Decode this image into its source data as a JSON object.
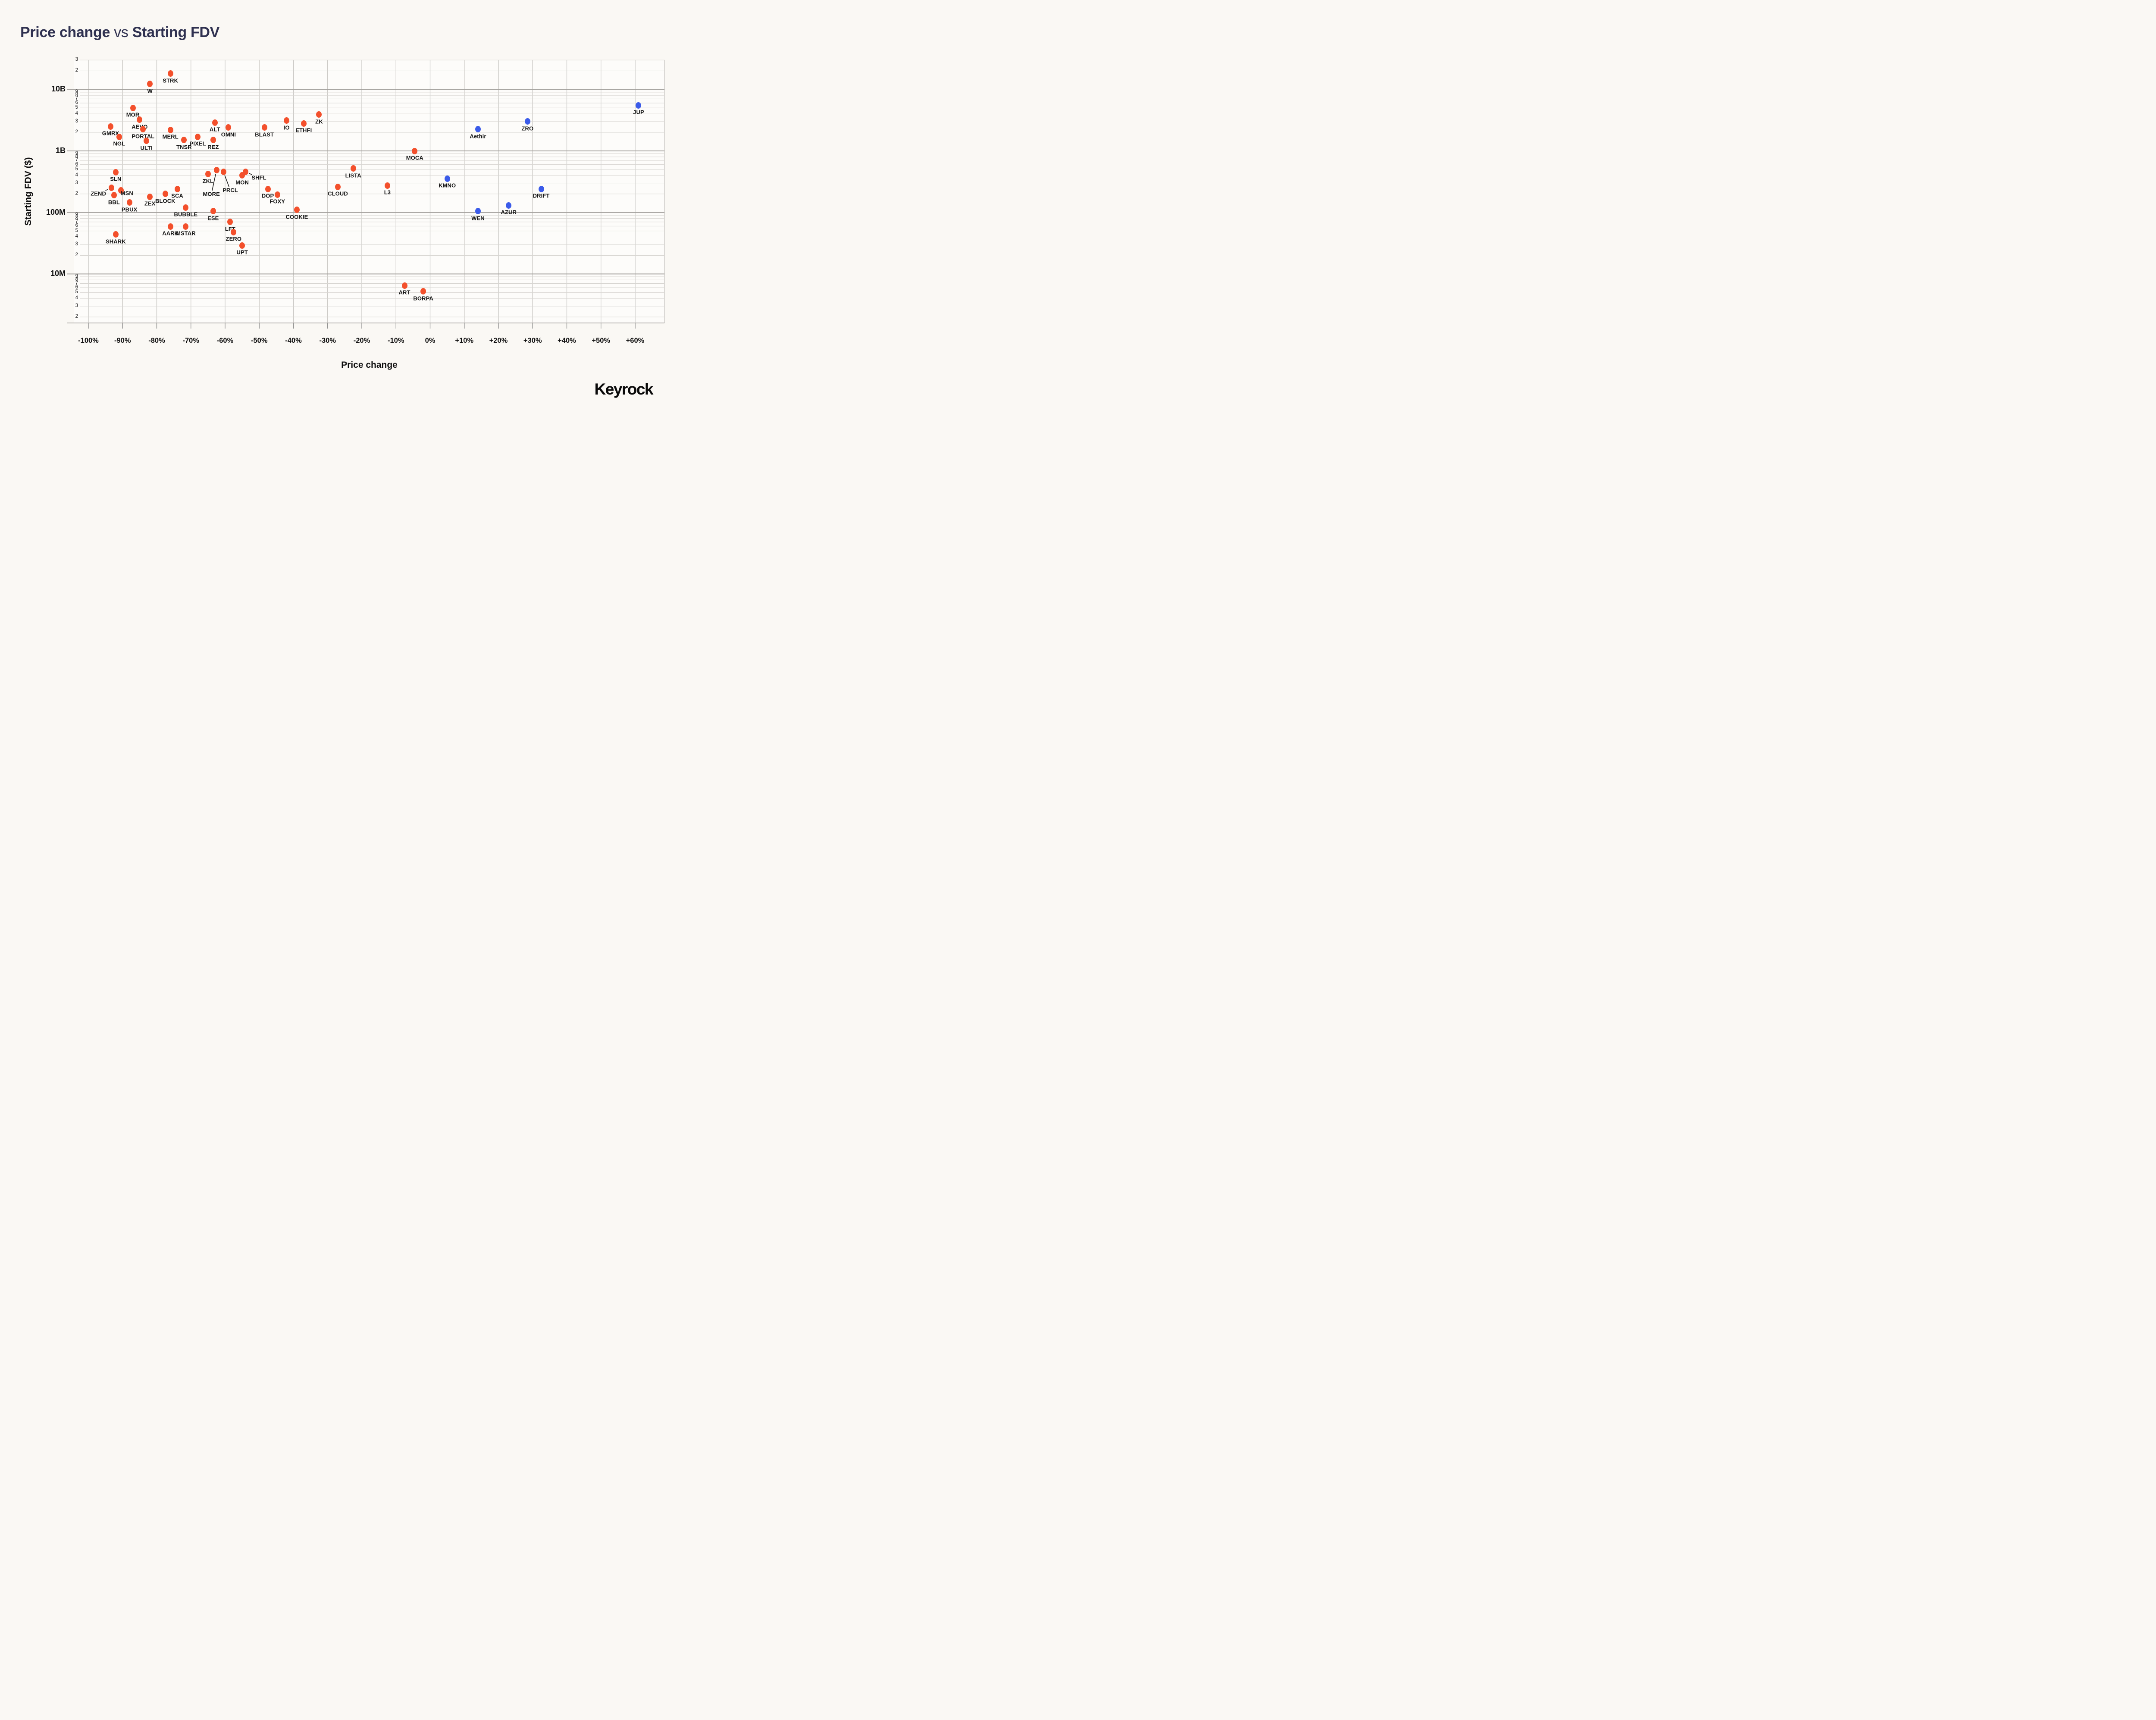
{
  "title": {
    "bold1": "Price change",
    "middle": " vs ",
    "bold2": "Starting FDV",
    "color": "#2F3150"
  },
  "footer": {
    "brand": "Keyrock"
  },
  "colors": {
    "background": "#FAF8F4",
    "plot_background": "#FDFCFA",
    "grid_major": "#A5A29E",
    "grid_minor": "#D8D6D2",
    "grid_vertical": "#C8C6C2",
    "tick_mark": "#8A8A8A",
    "leader_line": "#1A1A1A",
    "point_label": "#141414",
    "negative_points": "#F3502C",
    "positive_points": "#3B5BE9"
  },
  "chart_data": {
    "type": "scatter",
    "title": "Price change vs Starting FDV",
    "xlabel": "Price change",
    "ylabel": "Starting FDV ($)",
    "x_unit": "percent",
    "y_scale": "log10",
    "x_range": [
      -104.2,
      68.6
    ],
    "y_range": [
      1600000,
      30000000000
    ],
    "grid": true,
    "legend": "none",
    "x_axis": {
      "label": "Price change",
      "ticks": [
        {
          "v": -100,
          "label": "-100%"
        },
        {
          "v": -90,
          "label": "-90%"
        },
        {
          "v": -80,
          "label": "-80%"
        },
        {
          "v": -70,
          "label": "-70%"
        },
        {
          "v": -60,
          "label": "-60%"
        },
        {
          "v": -50,
          "label": "-50%"
        },
        {
          "v": -40,
          "label": "-40%"
        },
        {
          "v": -30,
          "label": "-30%"
        },
        {
          "v": -20,
          "label": "-20%"
        },
        {
          "v": -10,
          "label": "-10%"
        },
        {
          "v": 0,
          "label": "0%"
        },
        {
          "v": 10,
          "label": "+10%"
        },
        {
          "v": 20,
          "label": "+20%"
        },
        {
          "v": 30,
          "label": "+30%"
        },
        {
          "v": 40,
          "label": "+40%"
        },
        {
          "v": 50,
          "label": "+50%"
        },
        {
          "v": 60,
          "label": "+60%"
        }
      ]
    },
    "y_axis": {
      "title": "Starting FDV ($)",
      "majors": [
        {
          "v": 10000000000,
          "label": "10B"
        },
        {
          "v": 1000000000,
          "label": "1B"
        },
        {
          "v": 100000000,
          "label": "100M"
        },
        {
          "v": 10000000,
          "label": "10M"
        }
      ],
      "minor_digits": [
        9,
        8,
        7,
        6,
        5,
        4,
        3,
        2
      ],
      "top_minor_ticks": [
        {
          "v": 30000000000,
          "label": "3"
        },
        {
          "v": 20000000000,
          "label": "2"
        }
      ]
    },
    "series": [
      {
        "name": "negative-price-change",
        "color": "#F3502C",
        "points": [
          {
            "label": "STRK",
            "x": -76,
            "y": 18000000000
          },
          {
            "label": "W",
            "x": -82,
            "y": 12200000000
          },
          {
            "label": "MOR",
            "x": -87,
            "y": 5000000000
          },
          {
            "label": "AEVO",
            "x": -85,
            "y": 3200000000
          },
          {
            "label": "GMRX",
            "x": -93.5,
            "y": 2500000000
          },
          {
            "label": "PORTAL",
            "x": -84,
            "y": 2250000000
          },
          {
            "label": "NGL",
            "x": -91,
            "y": 1700000000
          },
          {
            "label": "ULTI",
            "x": -83,
            "y": 1450000000
          },
          {
            "label": "MERL",
            "x": -76,
            "y": 2200000000
          },
          {
            "label": "TNSR",
            "x": -72,
            "y": 1500000000
          },
          {
            "label": "PIXEL",
            "x": -68,
            "y": 1700000000
          },
          {
            "label": "REZ",
            "x": -63.5,
            "y": 1500000000
          },
          {
            "label": "ALT",
            "x": -63,
            "y": 2900000000
          },
          {
            "label": "OMNI",
            "x": -59,
            "y": 2400000000
          },
          {
            "label": "BLAST",
            "x": -48.5,
            "y": 2400000000
          },
          {
            "label": "IO",
            "x": -42,
            "y": 3100000000
          },
          {
            "label": "ETHFI",
            "x": -37,
            "y": 2800000000
          },
          {
            "label": "ZK",
            "x": -32.5,
            "y": 3900000000
          },
          {
            "label": "MOCA",
            "x": -4.5,
            "y": 1000000000
          },
          {
            "label": "SLN",
            "x": -92,
            "y": 450000000
          },
          {
            "label": "ZEND",
            "x": -93.3,
            "y": 250000000,
            "dx": -30,
            "dy": 13,
            "leader": true
          },
          {
            "label": "MSN",
            "x": -90.5,
            "y": 230000000,
            "dx": 14,
            "dy": 7
          },
          {
            "label": "BBL",
            "x": -92.5,
            "y": 190000000
          },
          {
            "label": "PBUX",
            "x": -88,
            "y": 145000000
          },
          {
            "label": "ZEX",
            "x": -82,
            "y": 180000000
          },
          {
            "label": "BLOCK",
            "x": -77.5,
            "y": 200000000
          },
          {
            "label": "SCA",
            "x": -74,
            "y": 240000000
          },
          {
            "label": "BUBBLE",
            "x": -71.5,
            "y": 120000000
          },
          {
            "label": "ESE",
            "x": -63.5,
            "y": 105000000
          },
          {
            "label": "ZKL",
            "x": -65,
            "y": 420000000
          },
          {
            "label": "MORE",
            "x": -62.5,
            "y": 490000000,
            "dx": -12,
            "dy": 56,
            "leader": true
          },
          {
            "label": "PRCL",
            "x": -60.5,
            "y": 460000000,
            "dx": 16,
            "dy": 43,
            "leader": true
          },
          {
            "label": "MON",
            "x": -55,
            "y": 400000000
          },
          {
            "label": "SHFL",
            "x": -54,
            "y": 455000000,
            "dx": 31,
            "dy": 13,
            "leader": true
          },
          {
            "label": "DOP",
            "x": -47.5,
            "y": 240000000
          },
          {
            "label": "FOXY",
            "x": -44.7,
            "y": 195000000
          },
          {
            "label": "COOKIE",
            "x": -39,
            "y": 110000000
          },
          {
            "label": "LISTA",
            "x": -22.5,
            "y": 520000000
          },
          {
            "label": "CLOUD",
            "x": -27,
            "y": 260000000
          },
          {
            "label": "L3",
            "x": -12.5,
            "y": 275000000
          },
          {
            "label": "AARK",
            "x": -76,
            "y": 59000000
          },
          {
            "label": "MSTAR",
            "x": -71.5,
            "y": 59000000
          },
          {
            "label": "SHARK",
            "x": -92,
            "y": 44000000
          },
          {
            "label": "LFT",
            "x": -58.5,
            "y": 70000000
          },
          {
            "label": "ZERO",
            "x": -57.5,
            "y": 48000000
          },
          {
            "label": "UPT",
            "x": -55,
            "y": 29000000
          },
          {
            "label": "ART",
            "x": -7.5,
            "y": 6500000
          },
          {
            "label": "BORPA",
            "x": -2,
            "y": 5200000
          }
        ]
      },
      {
        "name": "positive-price-change",
        "color": "#3B5BE9",
        "points": [
          {
            "label": "KMNO",
            "x": 5,
            "y": 355000000
          },
          {
            "label": "Aethir",
            "x": 14,
            "y": 2250000000
          },
          {
            "label": "WEN",
            "x": 14,
            "y": 105000000
          },
          {
            "label": "AZUR",
            "x": 23,
            "y": 130000000
          },
          {
            "label": "ZRO",
            "x": 28.5,
            "y": 3000000000
          },
          {
            "label": "DRIFT",
            "x": 32.5,
            "y": 240000000
          },
          {
            "label": "JUP",
            "x": 61,
            "y": 5500000000
          }
        ]
      }
    ]
  }
}
